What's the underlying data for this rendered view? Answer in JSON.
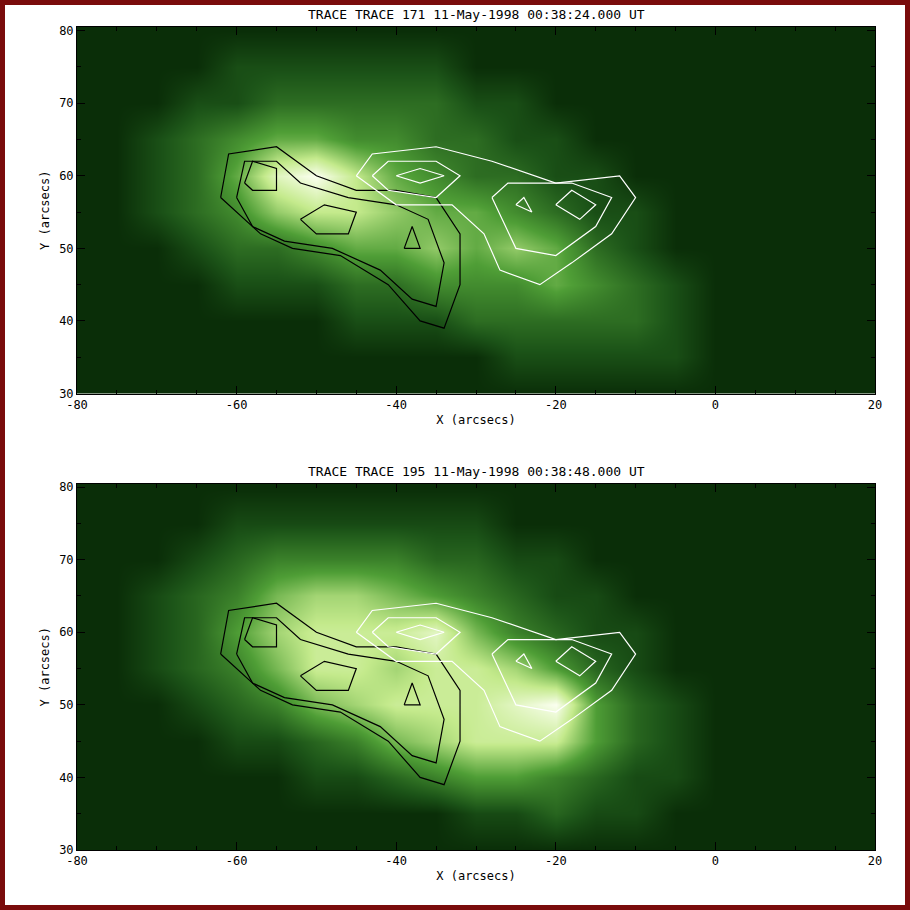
{
  "chart_data": [
    {
      "type": "heatmap",
      "title": "TRACE TRACE 171 11-May-1998 00:38:24.000 UT",
      "x_label": "X (arcsecs)",
      "y_label": "Y (arcsecs)",
      "xlim": [
        -80,
        20
      ],
      "ylim": [
        30,
        80.5
      ],
      "xticks": [
        -80,
        -60,
        -40,
        -20,
        0,
        20
      ],
      "yticks": [
        30,
        40,
        50,
        60,
        70,
        80
      ],
      "grid": false,
      "x": [
        -80,
        -75,
        -70,
        -65,
        -60,
        -55,
        -50,
        -45,
        -40,
        -35,
        -30,
        -25,
        -20,
        -15,
        -10,
        -5,
        0,
        5,
        10,
        15,
        20
      ],
      "y": [
        30,
        35,
        40,
        45,
        50,
        55,
        60,
        65,
        70,
        75,
        80
      ],
      "z": [
        [
          1,
          1,
          1,
          1,
          1,
          1,
          1,
          1,
          1,
          1,
          1,
          1,
          1,
          1,
          1,
          1,
          1,
          1,
          1,
          1,
          1
        ],
        [
          1,
          1,
          1,
          1,
          1,
          1,
          1,
          1,
          1,
          1,
          1,
          2,
          2,
          2,
          2,
          2,
          1,
          1,
          1,
          1,
          1
        ],
        [
          1,
          1,
          1,
          1,
          1,
          1,
          1,
          2,
          2,
          2,
          3,
          3,
          3,
          3,
          3,
          2,
          1,
          1,
          1,
          1,
          1
        ],
        [
          1,
          1,
          1,
          1,
          2,
          2,
          2,
          3,
          3,
          4,
          4,
          4,
          5,
          4,
          3,
          2,
          1,
          1,
          1,
          1,
          1
        ],
        [
          1,
          1,
          1,
          2,
          3,
          3,
          4,
          5,
          5,
          6,
          5,
          6,
          5,
          3,
          2,
          1,
          1,
          1,
          1,
          1,
          1
        ],
        [
          1,
          1,
          2,
          3,
          4,
          6,
          7,
          7,
          6,
          5,
          5,
          4,
          3,
          2,
          2,
          1,
          1,
          1,
          1,
          1,
          1
        ],
        [
          1,
          1,
          2,
          3,
          5,
          8,
          9,
          7,
          5,
          4,
          3,
          3,
          2,
          2,
          1,
          1,
          1,
          1,
          1,
          1,
          1
        ],
        [
          1,
          1,
          2,
          3,
          4,
          5,
          5,
          4,
          4,
          3,
          3,
          2,
          2,
          1,
          1,
          1,
          1,
          1,
          1,
          1,
          1
        ],
        [
          1,
          1,
          1,
          2,
          2,
          3,
          3,
          3,
          3,
          3,
          2,
          2,
          1,
          1,
          1,
          1,
          1,
          1,
          1,
          1,
          1
        ],
        [
          1,
          1,
          1,
          1,
          2,
          2,
          2,
          2,
          2,
          2,
          1,
          1,
          1,
          1,
          1,
          1,
          1,
          1,
          1,
          1,
          1
        ],
        [
          1,
          1,
          1,
          1,
          1,
          1,
          1,
          1,
          1,
          1,
          1,
          1,
          1,
          1,
          1,
          1,
          1,
          1,
          1,
          1,
          1
        ]
      ],
      "series": [
        {
          "type": "line",
          "color": "#000000",
          "x": [
            -62,
            -61,
            -55,
            -50,
            -45,
            -40,
            -35,
            -32,
            -32,
            -34,
            -37,
            -41,
            -47,
            -53,
            -57,
            -62
          ],
          "y": [
            57,
            63,
            64,
            60,
            58,
            58,
            57,
            52,
            45,
            39,
            40,
            45,
            49,
            50,
            52,
            57
          ]
        },
        {
          "type": "line",
          "color": "#000000",
          "x": [
            -60,
            -59,
            -55,
            -52,
            -46,
            -40,
            -36,
            -34,
            -35,
            -38,
            -42,
            -48,
            -54,
            -58,
            -60
          ],
          "y": [
            57,
            62,
            62,
            59,
            57,
            56,
            54,
            48,
            42,
            43,
            47,
            50,
            51,
            53,
            57
          ]
        },
        {
          "type": "line",
          "color": "#000000",
          "x": [
            -59,
            -58,
            -55,
            -55,
            -58,
            -59
          ],
          "y": [
            59,
            62,
            61,
            58,
            58,
            59
          ]
        },
        {
          "type": "line",
          "color": "#000000",
          "x": [
            -52,
            -49,
            -45,
            -46,
            -50,
            -52
          ],
          "y": [
            54,
            56,
            55,
            52,
            52,
            54
          ]
        },
        {
          "type": "line",
          "color": "#000000",
          "x": [
            -39,
            -38,
            -37,
            -39
          ],
          "y": [
            50,
            53,
            50,
            50
          ]
        },
        {
          "type": "line",
          "color": "#ffffff",
          "x": [
            -45,
            -43,
            -35,
            -28,
            -20,
            -12,
            -10,
            -13,
            -18,
            -22,
            -27,
            -29,
            -33,
            -40,
            -45
          ],
          "y": [
            60,
            63,
            64,
            62,
            59,
            60,
            57,
            52,
            48,
            45,
            47,
            52,
            56,
            56,
            60
          ]
        },
        {
          "type": "line",
          "color": "#ffffff",
          "x": [
            -43,
            -41,
            -35,
            -32,
            -35,
            -41,
            -43
          ],
          "y": [
            60,
            62,
            62,
            60,
            57,
            58,
            60
          ]
        },
        {
          "type": "line",
          "color": "#ffffff",
          "x": [
            -28,
            -26,
            -18,
            -13,
            -15,
            -20,
            -25,
            -28
          ],
          "y": [
            57,
            59,
            59,
            57,
            53,
            49,
            50,
            57
          ]
        },
        {
          "type": "line",
          "color": "#ffffff",
          "x": [
            -40,
            -37,
            -34,
            -37,
            -40
          ],
          "y": [
            60,
            61,
            60,
            59,
            60
          ]
        },
        {
          "type": "line",
          "color": "#ffffff",
          "x": [
            -20,
            -18,
            -15,
            -17,
            -20
          ],
          "y": [
            56,
            58,
            56,
            54,
            56
          ]
        },
        {
          "type": "line",
          "color": "#ffffff",
          "x": [
            -25,
            -24,
            -23,
            -25
          ],
          "y": [
            56,
            57,
            55,
            56
          ]
        }
      ]
    },
    {
      "type": "heatmap",
      "title": "TRACE TRACE 195 11-May-1998 00:38:48.000 UT",
      "x_label": "X (arcsecs)",
      "y_label": "Y (arcsecs)",
      "xlim": [
        -80,
        20
      ],
      "ylim": [
        30,
        80.5
      ],
      "xticks": [
        -80,
        -60,
        -40,
        -20,
        0,
        20
      ],
      "yticks": [
        30,
        40,
        50,
        60,
        70,
        80
      ],
      "grid": false,
      "x": [
        -80,
        -75,
        -70,
        -65,
        -60,
        -55,
        -50,
        -45,
        -40,
        -35,
        -30,
        -25,
        -20,
        -15,
        -10,
        -5,
        0,
        5,
        10,
        15,
        20
      ],
      "y": [
        30,
        35,
        40,
        45,
        50,
        55,
        60,
        65,
        70,
        75,
        80
      ],
      "z": [
        [
          1,
          1,
          1,
          1,
          1,
          1,
          1,
          1,
          1,
          1,
          1,
          1,
          1,
          1,
          1,
          1,
          1,
          1,
          1,
          1,
          1
        ],
        [
          1,
          1,
          1,
          1,
          1,
          1,
          1,
          1,
          1,
          1,
          2,
          2,
          3,
          2,
          2,
          1,
          1,
          1,
          1,
          1,
          1
        ],
        [
          1,
          1,
          1,
          1,
          1,
          1,
          2,
          2,
          3,
          4,
          5,
          5,
          4,
          3,
          2,
          2,
          1,
          1,
          1,
          1,
          1
        ],
        [
          1,
          1,
          1,
          1,
          2,
          2,
          3,
          4,
          6,
          7,
          8,
          8,
          8,
          5,
          3,
          2,
          1,
          1,
          1,
          1,
          1
        ],
        [
          1,
          1,
          1,
          2,
          3,
          4,
          6,
          7,
          8,
          8,
          8,
          9,
          10,
          5,
          3,
          2,
          1,
          1,
          1,
          1,
          1
        ],
        [
          1,
          1,
          2,
          3,
          4,
          6,
          8,
          8,
          7,
          8,
          8,
          7,
          5,
          3,
          2,
          1,
          1,
          1,
          1,
          1,
          1
        ],
        [
          1,
          1,
          2,
          3,
          5,
          7,
          8,
          8,
          8,
          9,
          6,
          4,
          3,
          2,
          2,
          1,
          1,
          1,
          1,
          1,
          1
        ],
        [
          1,
          1,
          2,
          3,
          4,
          6,
          7,
          7,
          6,
          5,
          4,
          3,
          2,
          2,
          1,
          1,
          1,
          1,
          1,
          1,
          1
        ],
        [
          1,
          1,
          1,
          2,
          3,
          4,
          4,
          4,
          4,
          3,
          3,
          2,
          2,
          1,
          1,
          1,
          1,
          1,
          1,
          1,
          1
        ],
        [
          1,
          1,
          1,
          1,
          2,
          2,
          2,
          2,
          2,
          2,
          2,
          1,
          1,
          1,
          1,
          1,
          1,
          1,
          1,
          1,
          1
        ],
        [
          1,
          1,
          1,
          1,
          1,
          1,
          1,
          1,
          1,
          1,
          1,
          1,
          1,
          1,
          1,
          1,
          1,
          1,
          1,
          1,
          1
        ]
      ],
      "series": [
        {
          "type": "line",
          "color": "#000000",
          "x": [
            -62,
            -61,
            -55,
            -50,
            -45,
            -40,
            -35,
            -32,
            -32,
            -34,
            -37,
            -41,
            -47,
            -53,
            -57,
            -62
          ],
          "y": [
            57,
            63,
            64,
            60,
            58,
            58,
            57,
            52,
            45,
            39,
            40,
            45,
            49,
            50,
            52,
            57
          ]
        },
        {
          "type": "line",
          "color": "#000000",
          "x": [
            -60,
            -59,
            -55,
            -52,
            -46,
            -40,
            -36,
            -34,
            -35,
            -38,
            -42,
            -48,
            -54,
            -58,
            -60
          ],
          "y": [
            57,
            62,
            62,
            59,
            57,
            56,
            54,
            48,
            42,
            43,
            47,
            50,
            51,
            53,
            57
          ]
        },
        {
          "type": "line",
          "color": "#000000",
          "x": [
            -59,
            -58,
            -55,
            -55,
            -58,
            -59
          ],
          "y": [
            59,
            62,
            61,
            58,
            58,
            59
          ]
        },
        {
          "type": "line",
          "color": "#000000",
          "x": [
            -52,
            -49,
            -45,
            -46,
            -50,
            -52
          ],
          "y": [
            54,
            56,
            55,
            52,
            52,
            54
          ]
        },
        {
          "type": "line",
          "color": "#000000",
          "x": [
            -39,
            -38,
            -37,
            -39
          ],
          "y": [
            50,
            53,
            50,
            50
          ]
        },
        {
          "type": "line",
          "color": "#ffffff",
          "x": [
            -45,
            -43,
            -35,
            -28,
            -20,
            -12,
            -10,
            -13,
            -18,
            -22,
            -27,
            -29,
            -33,
            -40,
            -45
          ],
          "y": [
            60,
            63,
            64,
            62,
            59,
            60,
            57,
            52,
            48,
            45,
            47,
            52,
            56,
            56,
            60
          ]
        },
        {
          "type": "line",
          "color": "#ffffff",
          "x": [
            -43,
            -41,
            -35,
            -32,
            -35,
            -41,
            -43
          ],
          "y": [
            60,
            62,
            62,
            60,
            57,
            58,
            60
          ]
        },
        {
          "type": "line",
          "color": "#ffffff",
          "x": [
            -28,
            -26,
            -18,
            -13,
            -15,
            -20,
            -25,
            -28
          ],
          "y": [
            57,
            59,
            59,
            57,
            53,
            49,
            50,
            57
          ]
        },
        {
          "type": "line",
          "color": "#ffffff",
          "x": [
            -40,
            -37,
            -34,
            -37,
            -40
          ],
          "y": [
            60,
            61,
            60,
            59,
            60
          ]
        },
        {
          "type": "line",
          "color": "#ffffff",
          "x": [
            -20,
            -18,
            -15,
            -17,
            -20
          ],
          "y": [
            56,
            58,
            56,
            54,
            56
          ]
        },
        {
          "type": "line",
          "color": "#ffffff",
          "x": [
            -25,
            -24,
            -23,
            -25
          ],
          "y": [
            56,
            57,
            55,
            56
          ]
        }
      ]
    }
  ]
}
